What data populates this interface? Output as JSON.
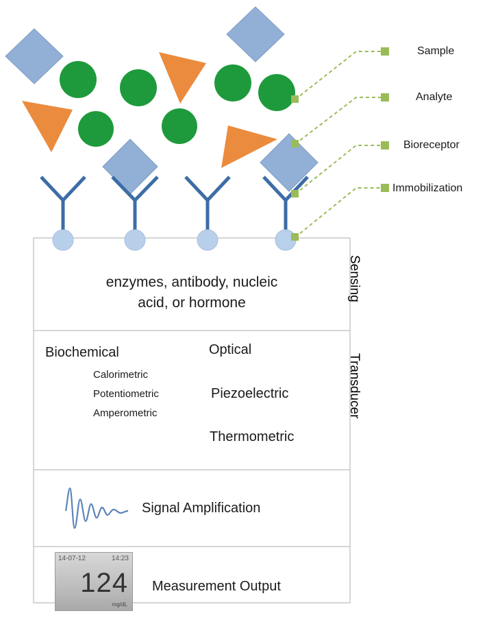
{
  "legend": {
    "sample": "Sample",
    "analyte": "Analyte",
    "bioreceptor": "Bioreceptor",
    "immobilization": "Immobilization"
  },
  "sections": {
    "sensing": {
      "side_label": "Sensing",
      "line1": "enzymes, antibody, nucleic",
      "line2": "acid, or hormone"
    },
    "transducer": {
      "side_label": "Transducer",
      "biochemical": "Biochemical",
      "calorimetric": "Calorimetric",
      "potentiometric": "Potentiometric",
      "amperometric": "Amperometric",
      "optical": "Optical",
      "piezoelectric": "Piezoelectric",
      "thermometric": "Thermometric"
    },
    "signal": {
      "label": "Signal Amplification"
    },
    "output": {
      "label": "Measurement Output"
    }
  },
  "meter": {
    "date": "14-07-12",
    "time": "14:23",
    "reading": "124",
    "unit": "mg/dL"
  },
  "colors": {
    "diamond": "#92b0d6",
    "circle": "#1e9a3c",
    "triangle": "#eb8b3d",
    "receptor": "#3d6da6",
    "bead": "#b9d0ea",
    "connector": "#9bbb59"
  }
}
